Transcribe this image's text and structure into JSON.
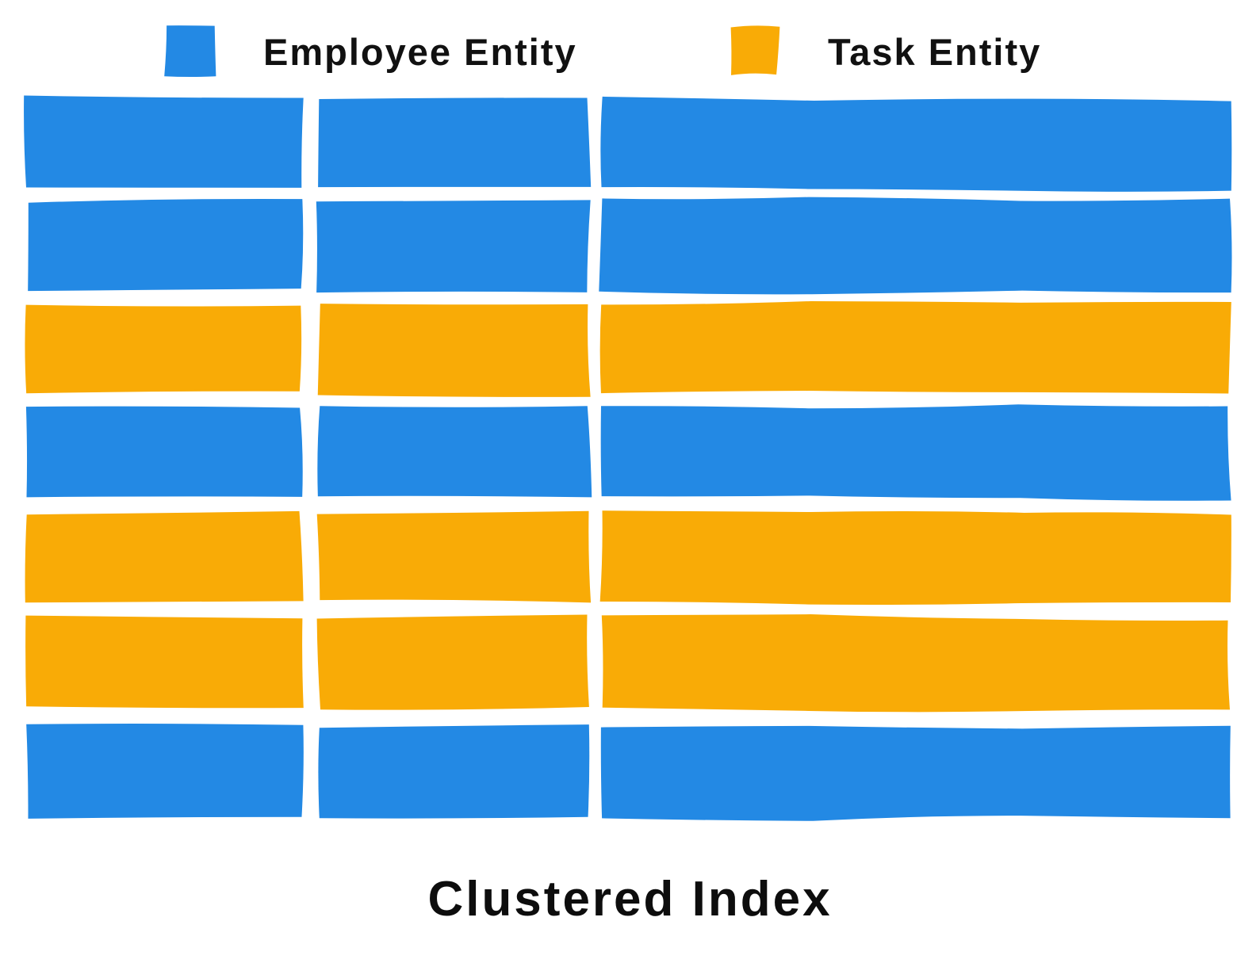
{
  "legend": {
    "items": [
      {
        "id": "employee",
        "label": "Employee Entity",
        "color": "#2389e4"
      },
      {
        "id": "task",
        "label": "Task Entity",
        "color": "#f9ab06"
      }
    ]
  },
  "caption": "Clustered Index",
  "diagram": {
    "type": "clustered-index-illustration",
    "columns": 3,
    "rows": 7,
    "row_entities": [
      "employee",
      "employee",
      "task",
      "employee",
      "task",
      "task",
      "employee"
    ]
  }
}
